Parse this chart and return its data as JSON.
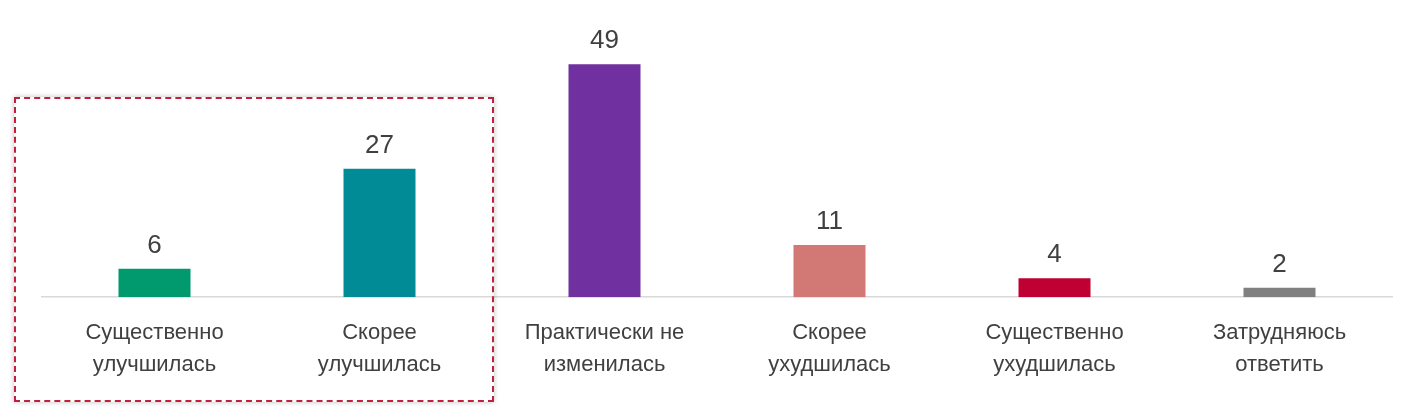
{
  "chart_data": {
    "type": "bar",
    "categories": [
      "Существенно улучшилась",
      "Скорее улучшилась",
      "Практически не изменилась",
      "Скорее ухудшилась",
      "Существенно ухудшилась",
      "Затрудняюсь ответить"
    ],
    "values": [
      6,
      27,
      49,
      11,
      4,
      2
    ],
    "colors": [
      "#009a6e",
      "#008b96",
      "#7030a0",
      "#d27875",
      "#be0032",
      "#808080"
    ],
    "tick_labels": "x",
    "grid": false,
    "legend": false,
    "data_labels": true
  }
}
